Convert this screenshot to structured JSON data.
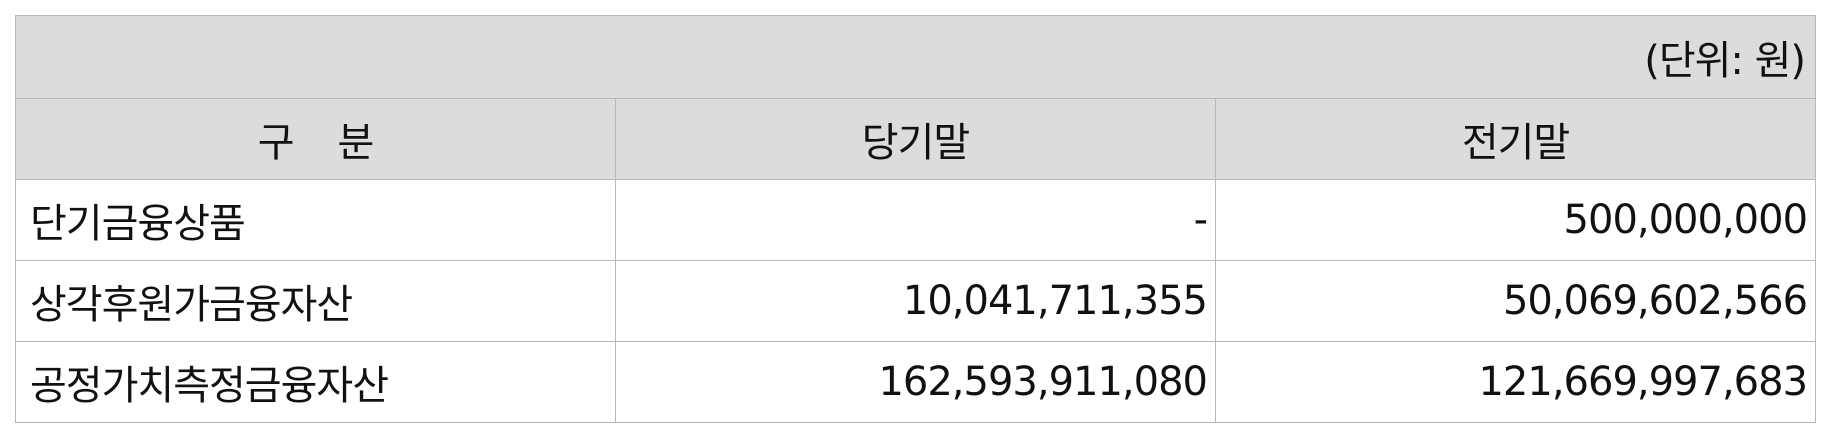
{
  "unit_label": "(단위: 원)",
  "columns": {
    "category_a": "구",
    "category_b": "분",
    "current": "당기말",
    "previous": "전기말"
  },
  "rows": [
    {
      "label": "단기금융상품",
      "current": "-",
      "previous": "500,000,000"
    },
    {
      "label": "상각후원가금융자산",
      "current": "10,041,711,355",
      "previous": "50,069,602,566"
    },
    {
      "label": "공정가치측정금융자산",
      "current": "162,593,911,080",
      "previous": "121,669,997,683"
    }
  ]
}
